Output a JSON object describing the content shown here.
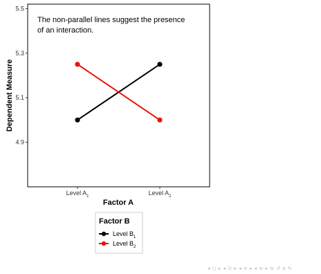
{
  "chart_data": {
    "type": "line",
    "annotation": [
      "The non-parallel lines suggest the presence",
      "of an interaction."
    ],
    "xlabel": "Factor A",
    "ylabel": "Dependent Measure",
    "categories": [
      {
        "base": "Level A",
        "sub": "1"
      },
      {
        "base": "Level A",
        "sub": "2"
      }
    ],
    "ylim": [
      4.7,
      5.52
    ],
    "yticks": [
      "4.9",
      "5.1",
      "5.3",
      "5.5"
    ],
    "grid": false,
    "legend": {
      "title": "Factor B",
      "placement": "bottom",
      "entries": [
        {
          "base": "Level B",
          "sub": "1",
          "color": "#000000"
        },
        {
          "base": "Level B",
          "sub": "2",
          "color": "#e8120c"
        }
      ]
    },
    "series": [
      {
        "values": [
          5.0,
          5.25
        ],
        "color": "#000000"
      },
      {
        "values": [
          5.25,
          5.0
        ],
        "color": "#e8120c"
      }
    ]
  },
  "navigation": {
    "glyphs": "◂ ◻ ▸ ◂ ⊡ ▸ ◂ ≡ ▸ ◂ ≡ ▸   ≡   ↺ ɑ ↻",
    "icon": "beamer-navigation-icons"
  }
}
